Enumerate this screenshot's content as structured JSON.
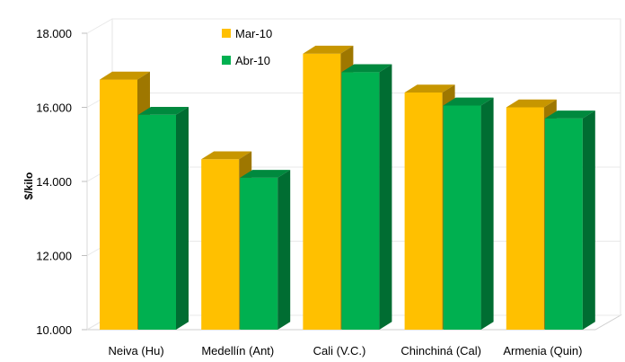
{
  "chart_data": {
    "type": "bar",
    "categories": [
      "Neiva (Hu)",
      "Medellín (Ant)",
      "Cali (V.C.)",
      "Chinchiná (Cal)",
      "Armenia (Quin)"
    ],
    "series": [
      {
        "name": "Mar-10",
        "values": [
          16750,
          14600,
          17450,
          16400,
          16000
        ],
        "color": "#FFC000"
      },
      {
        "name": "Abr-10",
        "values": [
          15800,
          14100,
          16950,
          16050,
          15700
        ],
        "color": "#00B050"
      }
    ],
    "ylabel": "$/kilo",
    "ylim": [
      10000,
      18000
    ],
    "yticks": [
      "10.000",
      "12.000",
      "14.000",
      "16.000",
      "18.000"
    ],
    "ytick_values": [
      10000,
      12000,
      14000,
      16000,
      18000
    ],
    "grid": true,
    "style": "3d-column",
    "legend_position": "top-left"
  }
}
